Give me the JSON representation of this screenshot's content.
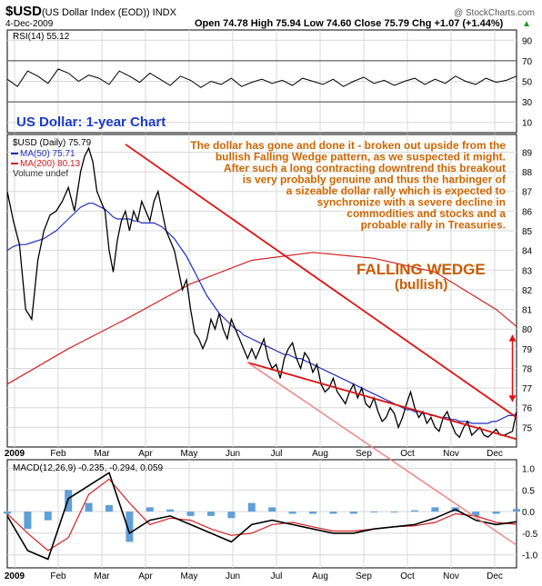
{
  "header": {
    "symbol": "$USD",
    "name": "(US Dollar Index (EOD)) INDX",
    "date": "4-Dec-2009",
    "ohlc": "Open 74.78  High 75.94  Low 74.60  Close 75.79  Chg +1.07 (+1.44%)",
    "chg_arrow": "▲",
    "watermark": "@ StockCharts.com"
  },
  "colors": {
    "panel_bg": "#ffffff",
    "grid": "#d8d8d8",
    "axis_bg": "#e8e8e8",
    "price": "#000000",
    "ma50": "#1f2fc0",
    "ma200": "#d22020",
    "wedge_line": "#dd1111",
    "macd_hist": "#5fa0d8",
    "annotation": "#cc6600",
    "title_blue": "#1a3cc8"
  },
  "chart_data": [
    {
      "type": "line",
      "panel": "rsi",
      "label": "RSI(14) 55.12",
      "yticks": [
        10,
        30,
        50,
        70,
        90
      ],
      "ylim": [
        0,
        100
      ],
      "levels": [
        30,
        70
      ],
      "x": [
        0,
        5,
        10,
        15,
        20,
        25,
        30,
        35,
        40,
        45,
        50,
        55,
        60,
        65,
        70,
        75,
        80,
        85,
        90,
        95,
        100,
        105,
        110,
        115,
        120,
        125,
        130,
        135,
        140,
        145,
        150,
        155,
        160,
        165,
        170,
        175,
        180,
        185,
        190,
        195,
        200,
        205,
        210,
        215,
        220,
        225,
        230,
        235,
        240,
        245,
        250
      ],
      "values": [
        52,
        45,
        60,
        55,
        48,
        62,
        58,
        50,
        56,
        53,
        47,
        60,
        55,
        49,
        58,
        52,
        46,
        55,
        51,
        44,
        50,
        47,
        53,
        45,
        49,
        52,
        48,
        51,
        46,
        53,
        50,
        47,
        52,
        45,
        50,
        54,
        48,
        51,
        46,
        50,
        53,
        47,
        52,
        48,
        55,
        50,
        47,
        53,
        49,
        51,
        55
      ]
    },
    {
      "type": "line",
      "panel": "price",
      "label": "$USD (Daily) 75.79",
      "ma50_label": "MA(50) 75.71",
      "ma200_label": "MA(200) 80.13",
      "volume_label": "Volume undef",
      "title": "US Dollar: 1-year Chart",
      "annotation": [
        "The dollar has gone and done it - broken out upside from the",
        "bullish Falling Wedge pattern, as we suspected it might.",
        "After such a long contracting downtrend this breakout",
        "is very probably genuine and thus the harbinger of",
        "a sizeable dollar rally which is expected to",
        "synchronize with a severe decline in",
        "commodities and stocks and a",
        "probable rally in Treasuries."
      ],
      "pattern_label": "FALLING WEDGE",
      "pattern_sub": "(bullish)",
      "yticks": [
        75,
        76,
        77,
        78,
        79,
        80,
        81,
        82,
        83,
        84,
        85,
        86,
        87,
        88,
        89
      ],
      "ylim": [
        74.0,
        89.9
      ],
      "months": [
        "2009",
        "Feb",
        "Mar",
        "Apr",
        "May",
        "Jun",
        "Jul",
        "Aug",
        "Sep",
        "Oct",
        "Nov",
        "Dec"
      ],
      "x": [
        0,
        3,
        6,
        9,
        12,
        15,
        18,
        21,
        24,
        27,
        30,
        33,
        36,
        38,
        40,
        42,
        44,
        46,
        48,
        50,
        52,
        54,
        56,
        58,
        60,
        62,
        64,
        66,
        68,
        70,
        72,
        74,
        76,
        78,
        80,
        82,
        84,
        86,
        88,
        90,
        92,
        94,
        96,
        98,
        100,
        102,
        104,
        106,
        108,
        110,
        112,
        114,
        116,
        118,
        120,
        122,
        124,
        126,
        128,
        130,
        132,
        134,
        136,
        138,
        140,
        142,
        144,
        146,
        148,
        150,
        152,
        154,
        156,
        158,
        160,
        162,
        164,
        166,
        168,
        170,
        172,
        174,
        176,
        178,
        180,
        182,
        184,
        186,
        188,
        190,
        192,
        194,
        196,
        198,
        200,
        202,
        204,
        206,
        208,
        210,
        212,
        214,
        216,
        218,
        220,
        222,
        224,
        226,
        228,
        230,
        232,
        234,
        236,
        238,
        240,
        242,
        244,
        246,
        248,
        250
      ],
      "close": [
        87.0,
        85.5,
        84.3,
        81.0,
        80.5,
        83.5,
        85.0,
        85.8,
        86.0,
        86.5,
        87.2,
        86.0,
        88.0,
        88.8,
        89.2,
        88.5,
        87.0,
        86.5,
        86.0,
        84.0,
        82.9,
        84.5,
        85.5,
        86.0,
        85.0,
        86.0,
        85.5,
        86.5,
        86.0,
        85.5,
        86.5,
        87.0,
        86.0,
        85.0,
        84.5,
        84.0,
        83.0,
        82.0,
        82.5,
        81.0,
        79.8,
        79.5,
        79.0,
        79.5,
        80.5,
        80.0,
        80.8,
        80.0,
        79.5,
        80.5,
        80.0,
        79.5,
        79.0,
        78.5,
        79.0,
        78.5,
        79.0,
        79.5,
        78.5,
        78.0,
        78.2,
        77.5,
        78.5,
        79.0,
        79.3,
        78.5,
        78.0,
        78.8,
        78.5,
        77.8,
        78.2,
        77.2,
        76.8,
        77.0,
        77.5,
        76.8,
        76.5,
        76.2,
        76.8,
        77.2,
        76.5,
        77.0,
        76.2,
        76.0,
        76.5,
        75.8,
        75.3,
        75.5,
        76.0,
        75.7,
        75.0,
        75.5,
        76.2,
        76.8,
        76.0,
        75.5,
        75.8,
        75.2,
        75.5,
        75.0,
        74.8,
        75.5,
        75.8,
        75.2,
        74.7,
        74.5,
        75.0,
        75.3,
        74.6,
        74.8,
        75.0,
        74.6,
        74.5,
        74.7,
        74.9,
        74.6,
        74.6,
        74.7,
        74.8,
        75.79
      ],
      "ma50": [
        84.0,
        84.2,
        84.3,
        84.3,
        84.4,
        84.5,
        84.6,
        84.8,
        85.0,
        85.3,
        85.6,
        85.9,
        86.2,
        86.3,
        86.4,
        86.4,
        86.3,
        86.2,
        86.1,
        85.9,
        85.7,
        85.6,
        85.6,
        85.6,
        85.6,
        85.5,
        85.5,
        85.4,
        85.4,
        85.4,
        85.4,
        85.3,
        85.2,
        85.0,
        84.8,
        84.6,
        84.3,
        84.0,
        83.7,
        83.3,
        82.9,
        82.5,
        82.1,
        81.7,
        81.4,
        81.1,
        80.8,
        80.6,
        80.4,
        80.2,
        80.0,
        79.9,
        79.7,
        79.6,
        79.5,
        79.4,
        79.3,
        79.2,
        79.1,
        79.0,
        78.9,
        78.8,
        78.7,
        78.7,
        78.6,
        78.5,
        78.5,
        78.4,
        78.3,
        78.2,
        78.1,
        78.0,
        77.9,
        77.8,
        77.7,
        77.6,
        77.5,
        77.4,
        77.3,
        77.2,
        77.1,
        77.0,
        76.9,
        76.8,
        76.7,
        76.6,
        76.5,
        76.4,
        76.3,
        76.2,
        76.1,
        76.0,
        75.9,
        75.9,
        75.8,
        75.8,
        75.7,
        75.7,
        75.6,
        75.6,
        75.5,
        75.5,
        75.5,
        75.4,
        75.4,
        75.3,
        75.3,
        75.3,
        75.2,
        75.2,
        75.2,
        75.2,
        75.2,
        75.3,
        75.3,
        75.4,
        75.5,
        75.6,
        75.6,
        75.71
      ],
      "ma200_x": [
        0,
        30,
        60,
        90,
        120,
        150,
        180,
        210,
        240,
        250
      ],
      "ma200": [
        77.2,
        79.0,
        80.6,
        82.3,
        83.5,
        83.9,
        83.6,
        82.9,
        81.0,
        80.13
      ],
      "wedge_upper": [
        [
          58,
          89.4
        ],
        [
          250,
          75.5
        ]
      ],
      "wedge_lower": [
        [
          118,
          78.3
        ],
        [
          250,
          74.4
        ]
      ],
      "projection": [
        [
          118,
          78.3
        ],
        [
          250,
          66.0
        ]
      ],
      "breakout_arrow": [
        [
          248,
          76.3
        ],
        [
          248,
          79.7
        ]
      ]
    },
    {
      "type": "line",
      "panel": "macd",
      "label": "MACD(12,26,9) -0.235, -0.294, 0.059",
      "yticks": [
        -1.0,
        -0.5,
        0.0,
        0.5,
        1.0
      ],
      "ylim": [
        -1.3,
        1.2
      ],
      "x": [
        0,
        10,
        20,
        30,
        40,
        50,
        60,
        70,
        80,
        90,
        100,
        110,
        120,
        130,
        140,
        150,
        160,
        170,
        180,
        190,
        200,
        210,
        220,
        230,
        240,
        250
      ],
      "macd": [
        -0.1,
        -0.9,
        -1.1,
        0.3,
        0.6,
        0.9,
        -0.5,
        -0.2,
        -0.1,
        -0.3,
        -0.5,
        -0.7,
        -0.3,
        -0.2,
        -0.3,
        -0.4,
        -0.5,
        -0.5,
        -0.4,
        -0.35,
        -0.3,
        -0.15,
        0.05,
        -0.2,
        -0.3,
        -0.235
      ],
      "signal": [
        -0.05,
        -0.5,
        -0.9,
        -0.6,
        0.4,
        0.75,
        0.2,
        -0.3,
        -0.15,
        -0.2,
        -0.4,
        -0.55,
        -0.5,
        -0.3,
        -0.25,
        -0.35,
        -0.45,
        -0.45,
        -0.4,
        -0.35,
        -0.33,
        -0.25,
        -0.05,
        -0.1,
        -0.25,
        -0.294
      ],
      "hist": [
        -0.05,
        -0.4,
        -0.2,
        0.5,
        0.2,
        0.15,
        -0.7,
        0.1,
        0.05,
        -0.1,
        -0.1,
        -0.15,
        0.2,
        0.1,
        -0.05,
        -0.05,
        -0.05,
        -0.05,
        0.0,
        0.0,
        0.03,
        0.1,
        0.1,
        -0.1,
        -0.05,
        0.059
      ]
    }
  ]
}
